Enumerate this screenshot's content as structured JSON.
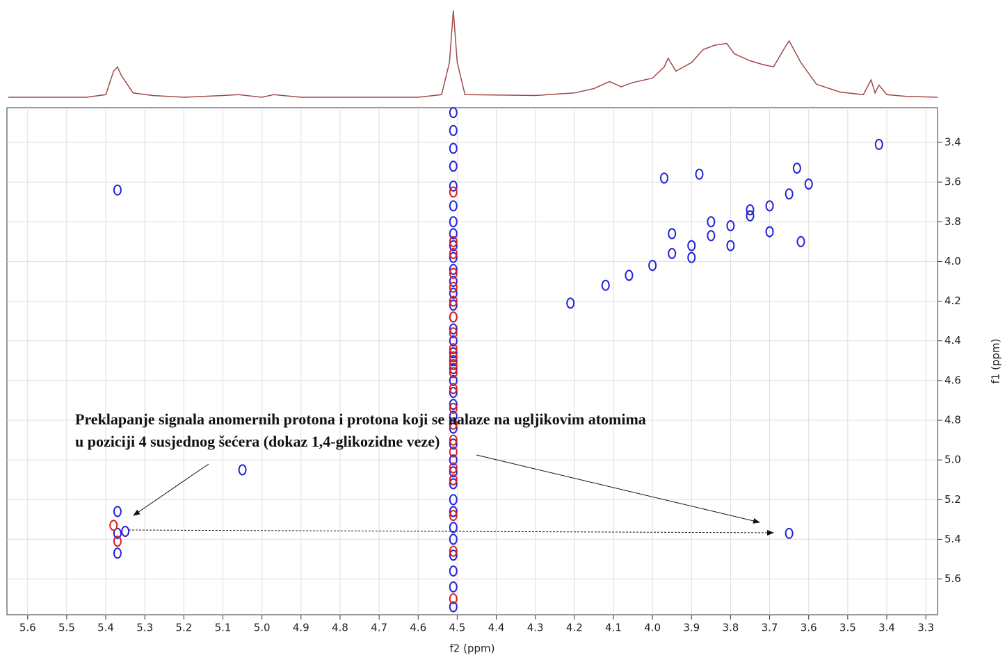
{
  "chart_data": [
    {
      "type": "line",
      "color": "#a04848",
      "xlim": [
        5.653,
        3.27
      ],
      "ylim": [
        0,
        100
      ],
      "x": [
        5.65,
        5.45,
        5.4,
        5.38,
        5.37,
        5.36,
        5.33,
        5.28,
        5.2,
        5.1,
        5.06,
        5.0,
        4.97,
        4.9,
        4.6,
        4.54,
        4.52,
        4.51,
        4.5,
        4.48,
        4.3,
        4.2,
        4.15,
        4.11,
        4.08,
        4.05,
        4.0,
        3.97,
        3.96,
        3.94,
        3.9,
        3.87,
        3.84,
        3.81,
        3.79,
        3.75,
        3.72,
        3.69,
        3.66,
        3.65,
        3.62,
        3.58,
        3.52,
        3.46,
        3.44,
        3.43,
        3.42,
        3.4,
        3.35,
        3.27
      ],
      "values": [
        0,
        0,
        3,
        30,
        35,
        25,
        5,
        2,
        0,
        2,
        3,
        0,
        3,
        0,
        0,
        3,
        40,
        100,
        40,
        3,
        2,
        5,
        10,
        18,
        12,
        17,
        22,
        35,
        45,
        30,
        40,
        55,
        60,
        62,
        50,
        42,
        38,
        35,
        58,
        65,
        40,
        15,
        6,
        3,
        20,
        5,
        14,
        3,
        1,
        0
      ]
    },
    {
      "type": "contour",
      "xlabel": "f2 (ppm)",
      "ylabel": "f1 (ppm)",
      "xlim": [
        5.653,
        3.27
      ],
      "ylim": [
        3.225,
        5.78
      ],
      "grid": true,
      "xticks": [
        5.6,
        5.5,
        5.4,
        5.3,
        5.2,
        5.1,
        {
          "value": 5,
          "label": "5.0"
        },
        4.9,
        4.8,
        4.7,
        4.6,
        4.5,
        4.4,
        4.3,
        4.2,
        4.1,
        {
          "value": 4,
          "label": "4.0"
        },
        3.9,
        3.8,
        3.7,
        3.6,
        3.5,
        3.4,
        3.3
      ],
      "yticks": [
        3.4,
        3.6,
        3.8,
        {
          "value": 4,
          "label": "4.0"
        },
        4.2,
        4.4,
        4.6,
        4.8,
        {
          "value": 5,
          "label": "5.0"
        },
        5.2,
        5.4,
        5.6
      ],
      "annotation": [
        "Preklapanje signala anomernih protona i protona koji se nalaze na ugljikovim atomima",
        "u poziciji 4 susjednog šećera (dokaz 1,4-glikozidne veze)"
      ],
      "series": [
        {
          "color": "#2323d8",
          "x": [
            4.51,
            4.51,
            4.51,
            4.51,
            4.51,
            4.51,
            4.51,
            4.51,
            4.51,
            4.51,
            4.51,
            4.51,
            4.51,
            4.51,
            4.51,
            4.51,
            4.51,
            4.51,
            4.51,
            4.51,
            4.51,
            4.51,
            4.51,
            4.51,
            4.51,
            4.51,
            4.51,
            4.51,
            4.51,
            4.51,
            4.51,
            4.51,
            4.51,
            4.51,
            4.51,
            4.51,
            4.51,
            5.37,
            5.05,
            5.37,
            5.37,
            5.35,
            5.37,
            4.21,
            3.65,
            3.42,
            3.63,
            4.12,
            4.06,
            4.0,
            3.95,
            3.9,
            3.85,
            3.8,
            3.75,
            3.7,
            3.65,
            3.6,
            3.95,
            3.85,
            3.75,
            3.9,
            3.8,
            3.7,
            3.62,
            3.97,
            3.88
          ],
          "values": [
            3.25,
            3.34,
            3.43,
            3.52,
            3.62,
            3.72,
            3.8,
            3.86,
            3.92,
            3.98,
            4.04,
            4.1,
            4.16,
            4.22,
            4.28,
            4.34,
            4.4,
            4.46,
            4.5,
            4.54,
            4.6,
            4.66,
            4.72,
            4.78,
            4.84,
            4.92,
            5.0,
            5.06,
            5.12,
            5.2,
            5.26,
            5.34,
            5.4,
            5.48,
            5.56,
            5.64,
            5.74,
            3.64,
            5.05,
            5.26,
            5.37,
            5.36,
            5.47,
            4.21,
            5.37,
            3.41,
            3.53,
            4.12,
            4.07,
            4.02,
            3.96,
            3.92,
            3.87,
            3.82,
            3.77,
            3.72,
            3.66,
            3.61,
            3.86,
            3.8,
            3.74,
            3.98,
            3.92,
            3.85,
            3.9,
            3.58,
            3.56
          ]
        },
        {
          "color": "#d82020",
          "x": [
            4.51,
            4.51,
            4.51,
            4.51,
            4.51,
            4.51,
            4.51,
            4.51,
            4.51,
            4.51,
            4.51,
            4.51,
            4.51,
            4.51,
            4.51,
            4.51,
            4.51,
            4.51,
            4.51,
            4.51,
            4.51,
            4.51,
            5.38,
            5.37
          ],
          "values": [
            3.65,
            3.9,
            3.96,
            4.06,
            4.13,
            4.2,
            4.28,
            4.36,
            4.44,
            4.48,
            4.52,
            4.56,
            4.64,
            4.74,
            4.82,
            4.9,
            4.96,
            5.04,
            5.1,
            5.28,
            5.46,
            5.7,
            5.33,
            5.41
          ]
        }
      ]
    }
  ]
}
